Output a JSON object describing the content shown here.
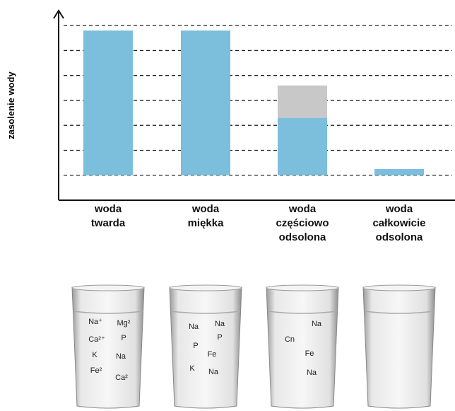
{
  "chart_data": {
    "type": "bar",
    "stacked": true,
    "y_label": "zasolenie wody",
    "categories": [
      "woda\ntwarda",
      "woda\nmiękka",
      "woda\nczęściowo\nodsolona",
      "woda\ncałkowicie\nodsolona"
    ],
    "series": [
      {
        "color": "#7bbfdc",
        "values": [
          5.8,
          5.8,
          2.3,
          0.25
        ]
      },
      {
        "color": "#c8c8c8",
        "values": [
          null,
          null,
          1.3,
          null
        ]
      }
    ],
    "ylim": [
      -1,
      6.6
    ],
    "gridlines": [
      0,
      1,
      2,
      3,
      4,
      5,
      6
    ],
    "grid": true
  },
  "glasses": [
    {
      "ions": [
        "Na⁺",
        "Mg²",
        "Ca²⁺",
        "P",
        "K",
        "Na",
        "Fe²",
        "Ca²"
      ]
    },
    {
      "ions": [
        "Na",
        "Na",
        "P",
        "P",
        "Fe",
        "K",
        "Na"
      ]
    },
    {
      "ions": [
        "Na",
        "Cn",
        "Fe",
        "Na"
      ]
    },
    {
      "ions": []
    }
  ]
}
